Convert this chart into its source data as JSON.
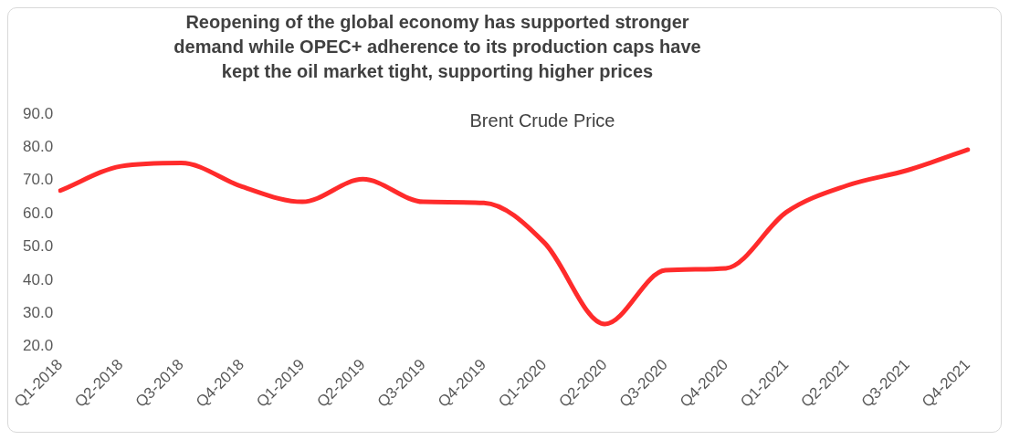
{
  "chart_data": {
    "type": "line",
    "title": "Reopening of the global economy has supported stronger demand while OPEC+ adherence to its production caps have kept the oil market tight, supporting higher prices",
    "subtitle": "Brent Crude Price",
    "categories": [
      "Q1-2018",
      "Q2-2018",
      "Q3-2018",
      "Q4-2018",
      "Q1-2019",
      "Q2-2019",
      "Q3-2019",
      "Q4-2019",
      "Q1-2020",
      "Q2-2020",
      "Q3-2020",
      "Q4-2020",
      "Q1-2021",
      "Q2-2021",
      "Q3-2021",
      "Q4-2021"
    ],
    "series": [
      {
        "color": "#ff2b2b",
        "values": [
          67.0,
          74.3,
          75.3,
          68.2,
          63.6,
          70.4,
          63.6,
          63.3,
          51.3,
          26.8,
          43.0,
          43.6,
          60.5,
          68.5,
          73.1,
          79.3
        ]
      }
    ],
    "ylim": [
      20,
      90
    ],
    "yticks": [
      {
        "value": 20,
        "label": "20.0"
      },
      {
        "value": 30,
        "label": "30.0"
      },
      {
        "value": 40,
        "label": "40.0"
      },
      {
        "value": 50,
        "label": "50.0"
      },
      {
        "value": 60,
        "label": "60.0"
      },
      {
        "value": 70,
        "label": "70.0"
      },
      {
        "value": 80,
        "label": "80.0"
      },
      {
        "value": 90,
        "label": "90.0"
      }
    ],
    "grid": false,
    "legend": false,
    "marker": "none",
    "line_style": "solid"
  }
}
